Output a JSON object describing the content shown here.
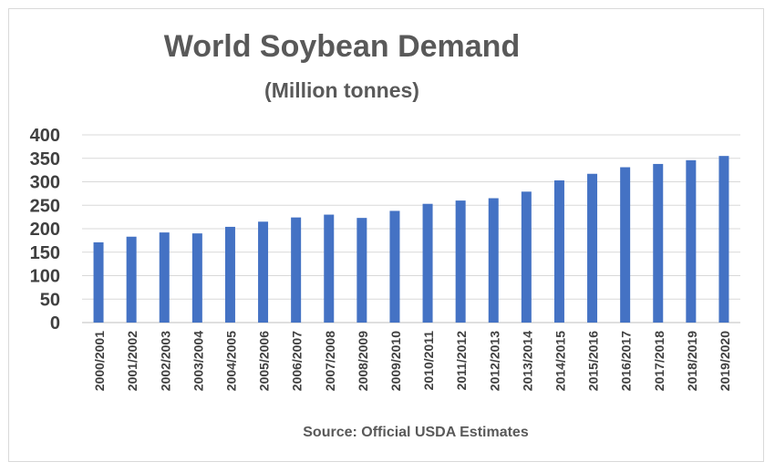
{
  "chart_data": {
    "type": "bar",
    "title": "World Soybean Demand",
    "subtitle": "(Million tonnes)",
    "xlabel": "",
    "ylabel": "",
    "source": "Source: Official USDA Estimates",
    "categories": [
      "2000/2001",
      "2001/2002",
      "2002/2003",
      "2003/2004",
      "2004/2005",
      "2005/2006",
      "2006/2007",
      "2007/2008",
      "2008/2009",
      "2009/2010",
      "2010/2011",
      "2011/2012",
      "2012/2013",
      "2013/2014",
      "2014/2015",
      "2015/2016",
      "2016/2017",
      "2017/2018",
      "2018/2019",
      "2019/2020"
    ],
    "values": [
      171,
      183,
      192,
      190,
      204,
      215,
      224,
      230,
      223,
      238,
      253,
      260,
      265,
      279,
      303,
      317,
      331,
      338,
      346,
      355
    ],
    "ylim": [
      0,
      400
    ],
    "yticks": [
      0,
      50,
      100,
      150,
      200,
      250,
      300,
      350,
      400
    ],
    "grid": true,
    "legend": "none",
    "colors": {
      "bar": "#4472c4",
      "grid": "#d9d9d9",
      "text": "#595959",
      "tick_text": "#404040"
    }
  }
}
